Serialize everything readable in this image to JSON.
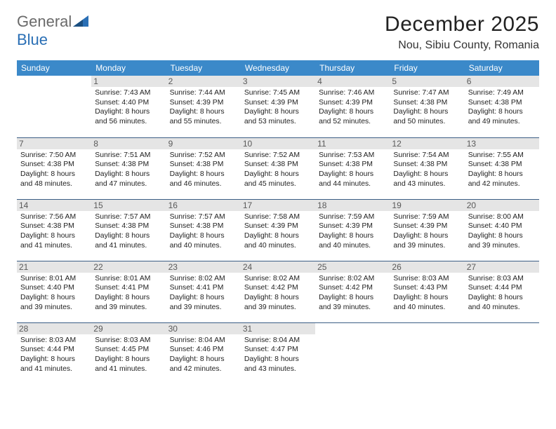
{
  "logo": {
    "text_general": "General",
    "text_blue": "Blue"
  },
  "header": {
    "title": "December 2025",
    "location": "Nou, Sibiu County, Romania"
  },
  "colors": {
    "header_bg": "#3b89c9",
    "header_text": "#ffffff",
    "daynum_bg": "#e5e5e5",
    "border": "#3b5e85",
    "logo_blue": "#2a6fb5"
  },
  "day_headers": [
    "Sunday",
    "Monday",
    "Tuesday",
    "Wednesday",
    "Thursday",
    "Friday",
    "Saturday"
  ],
  "weeks": [
    [
      {
        "day": "",
        "sunrise": "",
        "sunset": "",
        "daylight": "",
        "empty": true
      },
      {
        "day": "1",
        "sunrise": "Sunrise: 7:43 AM",
        "sunset": "Sunset: 4:40 PM",
        "daylight": "Daylight: 8 hours and 56 minutes."
      },
      {
        "day": "2",
        "sunrise": "Sunrise: 7:44 AM",
        "sunset": "Sunset: 4:39 PM",
        "daylight": "Daylight: 8 hours and 55 minutes."
      },
      {
        "day": "3",
        "sunrise": "Sunrise: 7:45 AM",
        "sunset": "Sunset: 4:39 PM",
        "daylight": "Daylight: 8 hours and 53 minutes."
      },
      {
        "day": "4",
        "sunrise": "Sunrise: 7:46 AM",
        "sunset": "Sunset: 4:39 PM",
        "daylight": "Daylight: 8 hours and 52 minutes."
      },
      {
        "day": "5",
        "sunrise": "Sunrise: 7:47 AM",
        "sunset": "Sunset: 4:38 PM",
        "daylight": "Daylight: 8 hours and 50 minutes."
      },
      {
        "day": "6",
        "sunrise": "Sunrise: 7:49 AM",
        "sunset": "Sunset: 4:38 PM",
        "daylight": "Daylight: 8 hours and 49 minutes."
      }
    ],
    [
      {
        "day": "7",
        "sunrise": "Sunrise: 7:50 AM",
        "sunset": "Sunset: 4:38 PM",
        "daylight": "Daylight: 8 hours and 48 minutes."
      },
      {
        "day": "8",
        "sunrise": "Sunrise: 7:51 AM",
        "sunset": "Sunset: 4:38 PM",
        "daylight": "Daylight: 8 hours and 47 minutes."
      },
      {
        "day": "9",
        "sunrise": "Sunrise: 7:52 AM",
        "sunset": "Sunset: 4:38 PM",
        "daylight": "Daylight: 8 hours and 46 minutes."
      },
      {
        "day": "10",
        "sunrise": "Sunrise: 7:52 AM",
        "sunset": "Sunset: 4:38 PM",
        "daylight": "Daylight: 8 hours and 45 minutes."
      },
      {
        "day": "11",
        "sunrise": "Sunrise: 7:53 AM",
        "sunset": "Sunset: 4:38 PM",
        "daylight": "Daylight: 8 hours and 44 minutes."
      },
      {
        "day": "12",
        "sunrise": "Sunrise: 7:54 AM",
        "sunset": "Sunset: 4:38 PM",
        "daylight": "Daylight: 8 hours and 43 minutes."
      },
      {
        "day": "13",
        "sunrise": "Sunrise: 7:55 AM",
        "sunset": "Sunset: 4:38 PM",
        "daylight": "Daylight: 8 hours and 42 minutes."
      }
    ],
    [
      {
        "day": "14",
        "sunrise": "Sunrise: 7:56 AM",
        "sunset": "Sunset: 4:38 PM",
        "daylight": "Daylight: 8 hours and 41 minutes."
      },
      {
        "day": "15",
        "sunrise": "Sunrise: 7:57 AM",
        "sunset": "Sunset: 4:38 PM",
        "daylight": "Daylight: 8 hours and 41 minutes."
      },
      {
        "day": "16",
        "sunrise": "Sunrise: 7:57 AM",
        "sunset": "Sunset: 4:38 PM",
        "daylight": "Daylight: 8 hours and 40 minutes."
      },
      {
        "day": "17",
        "sunrise": "Sunrise: 7:58 AM",
        "sunset": "Sunset: 4:39 PM",
        "daylight": "Daylight: 8 hours and 40 minutes."
      },
      {
        "day": "18",
        "sunrise": "Sunrise: 7:59 AM",
        "sunset": "Sunset: 4:39 PM",
        "daylight": "Daylight: 8 hours and 40 minutes."
      },
      {
        "day": "19",
        "sunrise": "Sunrise: 7:59 AM",
        "sunset": "Sunset: 4:39 PM",
        "daylight": "Daylight: 8 hours and 39 minutes."
      },
      {
        "day": "20",
        "sunrise": "Sunrise: 8:00 AM",
        "sunset": "Sunset: 4:40 PM",
        "daylight": "Daylight: 8 hours and 39 minutes."
      }
    ],
    [
      {
        "day": "21",
        "sunrise": "Sunrise: 8:01 AM",
        "sunset": "Sunset: 4:40 PM",
        "daylight": "Daylight: 8 hours and 39 minutes."
      },
      {
        "day": "22",
        "sunrise": "Sunrise: 8:01 AM",
        "sunset": "Sunset: 4:41 PM",
        "daylight": "Daylight: 8 hours and 39 minutes."
      },
      {
        "day": "23",
        "sunrise": "Sunrise: 8:02 AM",
        "sunset": "Sunset: 4:41 PM",
        "daylight": "Daylight: 8 hours and 39 minutes."
      },
      {
        "day": "24",
        "sunrise": "Sunrise: 8:02 AM",
        "sunset": "Sunset: 4:42 PM",
        "daylight": "Daylight: 8 hours and 39 minutes."
      },
      {
        "day": "25",
        "sunrise": "Sunrise: 8:02 AM",
        "sunset": "Sunset: 4:42 PM",
        "daylight": "Daylight: 8 hours and 39 minutes."
      },
      {
        "day": "26",
        "sunrise": "Sunrise: 8:03 AM",
        "sunset": "Sunset: 4:43 PM",
        "daylight": "Daylight: 8 hours and 40 minutes."
      },
      {
        "day": "27",
        "sunrise": "Sunrise: 8:03 AM",
        "sunset": "Sunset: 4:44 PM",
        "daylight": "Daylight: 8 hours and 40 minutes."
      }
    ],
    [
      {
        "day": "28",
        "sunrise": "Sunrise: 8:03 AM",
        "sunset": "Sunset: 4:44 PM",
        "daylight": "Daylight: 8 hours and 41 minutes."
      },
      {
        "day": "29",
        "sunrise": "Sunrise: 8:03 AM",
        "sunset": "Sunset: 4:45 PM",
        "daylight": "Daylight: 8 hours and 41 minutes."
      },
      {
        "day": "30",
        "sunrise": "Sunrise: 8:04 AM",
        "sunset": "Sunset: 4:46 PM",
        "daylight": "Daylight: 8 hours and 42 minutes."
      },
      {
        "day": "31",
        "sunrise": "Sunrise: 8:04 AM",
        "sunset": "Sunset: 4:47 PM",
        "daylight": "Daylight: 8 hours and 43 minutes."
      },
      {
        "day": "",
        "sunrise": "",
        "sunset": "",
        "daylight": "",
        "empty": true
      },
      {
        "day": "",
        "sunrise": "",
        "sunset": "",
        "daylight": "",
        "empty": true
      },
      {
        "day": "",
        "sunrise": "",
        "sunset": "",
        "daylight": "",
        "empty": true
      }
    ]
  ]
}
